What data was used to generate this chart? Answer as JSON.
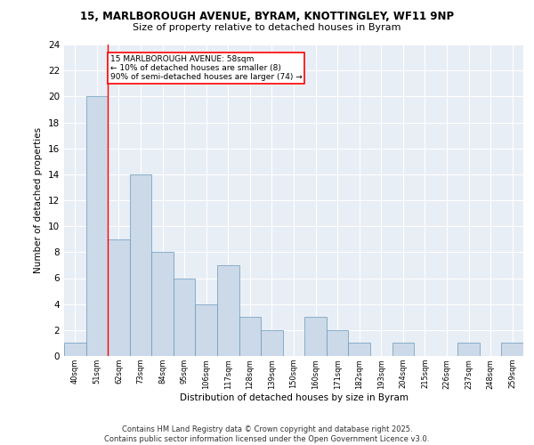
{
  "title1": "15, MARLBOROUGH AVENUE, BYRAM, KNOTTINGLEY, WF11 9NP",
  "title2": "Size of property relative to detached houses in Byram",
  "xlabel": "Distribution of detached houses by size in Byram",
  "ylabel": "Number of detached properties",
  "bar_labels": [
    "40sqm",
    "51sqm",
    "62sqm",
    "73sqm",
    "84sqm",
    "95sqm",
    "106sqm",
    "117sqm",
    "128sqm",
    "139sqm",
    "150sqm",
    "160sqm",
    "171sqm",
    "182sqm",
    "193sqm",
    "204sqm",
    "215sqm",
    "226sqm",
    "237sqm",
    "248sqm",
    "259sqm"
  ],
  "bar_heights": [
    1,
    20,
    9,
    14,
    8,
    6,
    4,
    7,
    3,
    2,
    0,
    3,
    2,
    1,
    0,
    1,
    0,
    0,
    1,
    0,
    1
  ],
  "bar_color": "#ccd9e8",
  "bar_edge_color": "#6699bb",
  "vline_x": 1.5,
  "vline_color": "red",
  "annotation_text": "15 MARLBOROUGH AVENUE: 58sqm\n← 10% of detached houses are smaller (8)\n90% of semi-detached houses are larger (74) →",
  "annotation_box_color": "white",
  "annotation_box_edge": "red",
  "ylim": [
    0,
    24
  ],
  "yticks": [
    0,
    2,
    4,
    6,
    8,
    10,
    12,
    14,
    16,
    18,
    20,
    22,
    24
  ],
  "bg_color": "#e8eef5",
  "grid_color": "white",
  "footer": "Contains HM Land Registry data © Crown copyright and database right 2025.\nContains public sector information licensed under the Open Government Licence v3.0."
}
